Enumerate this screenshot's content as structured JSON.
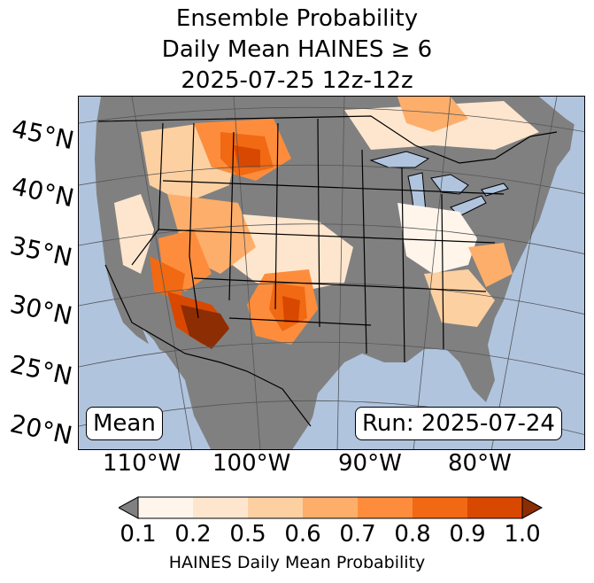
{
  "title": {
    "line1": "Ensemble Probability",
    "line2": "Daily Mean HAINES ≥ 6",
    "line3": "2025-07-25 12z-12z"
  },
  "map": {
    "ocean_color": "#b0c4de",
    "no_data_color": "#808080",
    "lat_labels": [
      "45°N",
      "40°N",
      "35°N",
      "30°N",
      "25°N",
      "20°N"
    ],
    "lon_labels": [
      "110°W",
      "100°W",
      "90°W",
      "80°W"
    ],
    "stat_label": "Mean",
    "run_label": "Run: 2025-07-24"
  },
  "colorbar": {
    "ticks": [
      "0.1",
      "0.2",
      "0.5",
      "0.6",
      "0.7",
      "0.8",
      "0.9",
      "1.0"
    ],
    "colors": [
      "#fff5eb",
      "#fee6ce",
      "#fdd0a2",
      "#fdae6b",
      "#fd8d3c",
      "#f16913",
      "#d94801"
    ],
    "under_color": "#808080",
    "over_color": "#8c2d04",
    "label": "HAINES Daily Mean Probability"
  }
}
